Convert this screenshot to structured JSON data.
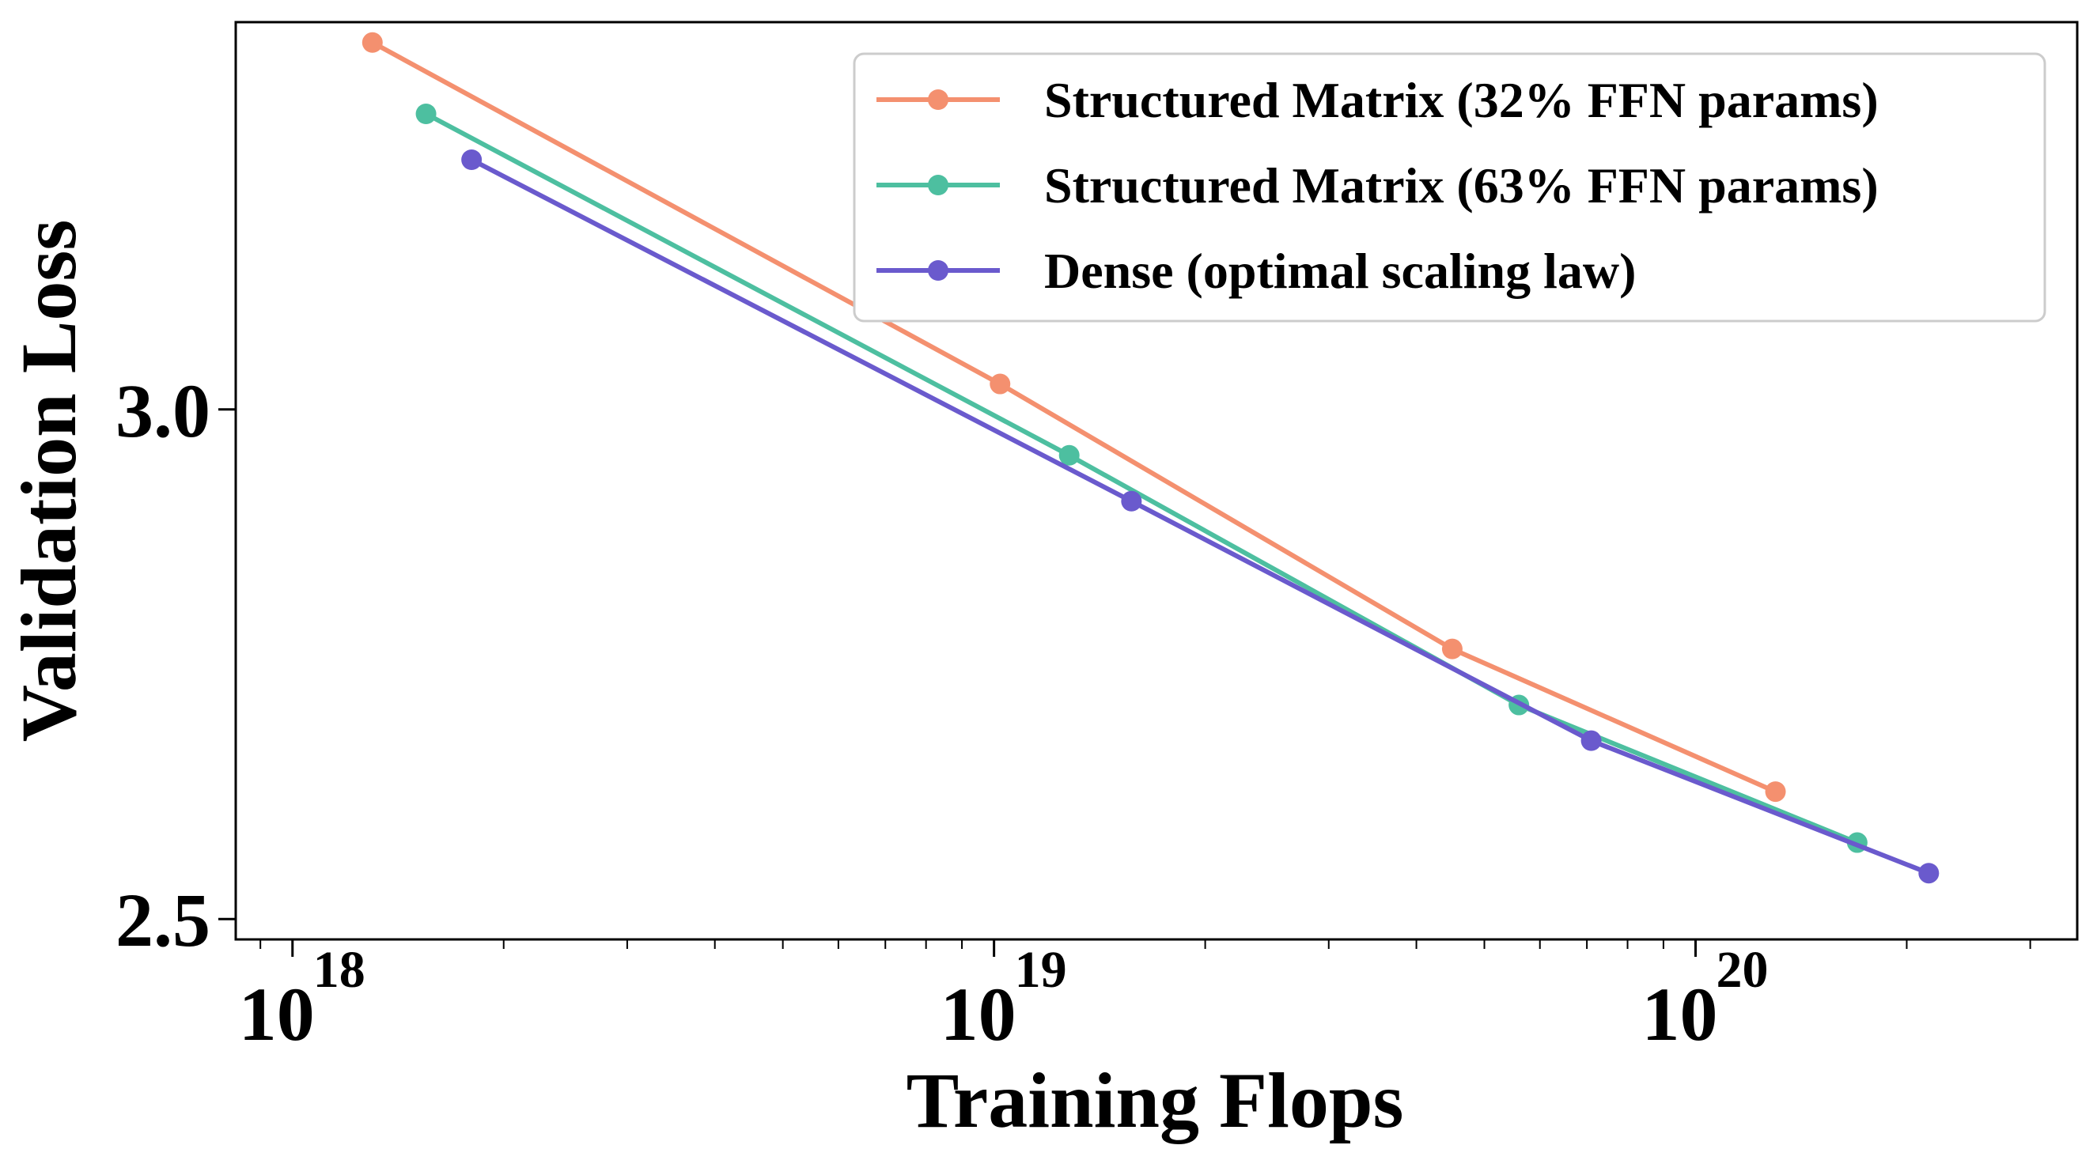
{
  "chart_data": {
    "type": "line",
    "xscale": "log",
    "xlabel": "Training Flops",
    "ylabel": "Validation Loss",
    "xlim": [
      8.3e+17,
      3.5e+20
    ],
    "ylim": [
      2.48,
      3.38
    ],
    "xticks": [
      {
        "value": 1e+18,
        "base": "10",
        "exp": "18"
      },
      {
        "value": 1e+19,
        "base": "10",
        "exp": "19"
      },
      {
        "value": 1e+20,
        "base": "10",
        "exp": "20"
      }
    ],
    "yticks": [
      {
        "value": 2.5,
        "label": "2.5"
      },
      {
        "value": 3.0,
        "label": "3.0"
      }
    ],
    "legend_position": "top-right",
    "grid": false,
    "series": [
      {
        "name": "Structured Matrix (32% FFN params)",
        "color": "#F4906F",
        "x": [
          1.3e+18,
          1.02e+19,
          4.5e+19,
          1.3e+20
        ],
        "y": [
          3.36,
          3.025,
          2.765,
          2.625
        ]
      },
      {
        "name": "Structured Matrix (63% FFN params)",
        "color": "#4DBFA0",
        "x": [
          1.55e+18,
          1.28e+19,
          5.6e+19,
          1.7e+20
        ],
        "y": [
          3.29,
          2.955,
          2.71,
          2.575
        ]
      },
      {
        "name": "Dense (optimal scaling law)",
        "color": "#6A5ACD",
        "x": [
          1.8e+18,
          1.57e+19,
          7.1e+19,
          2.15e+20
        ],
        "y": [
          3.245,
          2.91,
          2.675,
          2.545
        ]
      }
    ]
  }
}
